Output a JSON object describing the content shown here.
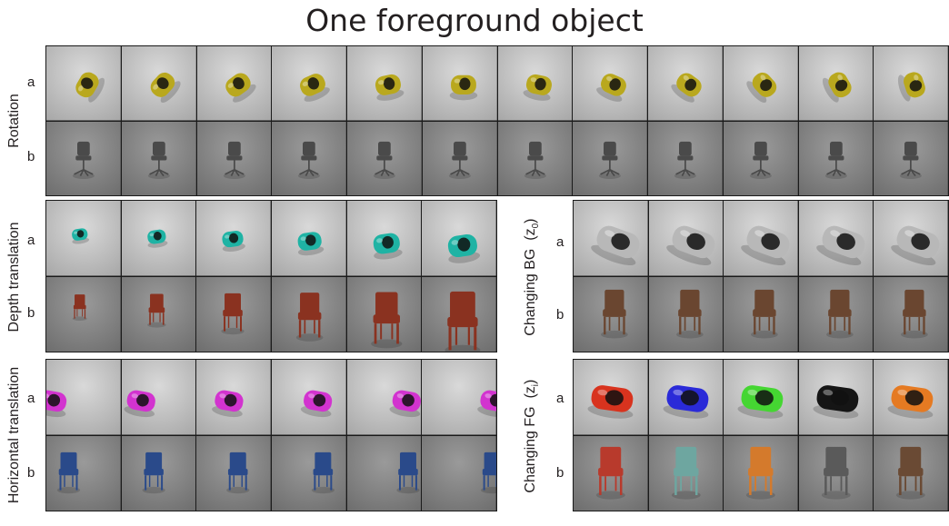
{
  "figure": {
    "title": "One foreground object",
    "row_letters": [
      "a",
      "b"
    ],
    "rotation": {
      "label": "Rotation",
      "columns": 12
    },
    "depth": {
      "label": "Depth translation",
      "columns": 6
    },
    "horizontal": {
      "label": "Horizontal translation",
      "columns": 6
    },
    "changing_bg": {
      "label": "Changing BG",
      "sub": "(z",
      "idx": "0",
      "close": ")",
      "columns": 5
    },
    "changing_fg": {
      "label": "Changing FG",
      "sub": "(z",
      "idx": "i",
      "close": ")",
      "columns": 5
    }
  },
  "colors": {
    "rotation_car": "#b9a81e",
    "rotation_chair": "#4a4a4a",
    "depth_car": "#1fb3a4",
    "depth_chair": "#8a3220",
    "horizontal_car": "#d233cf",
    "horizontal_chair": "#2a4a8a",
    "bg_car": "#b8b8b8",
    "bg_chair": "#6a4630",
    "fg_cars": [
      "#d8331e",
      "#2a2ad8",
      "#45d632",
      "#151515",
      "#e57a22"
    ],
    "fg_chairs": [
      "#b83a2c",
      "#6ea6a0",
      "#d47a2c",
      "#5a5a5a",
      "#6a4a34"
    ]
  }
}
